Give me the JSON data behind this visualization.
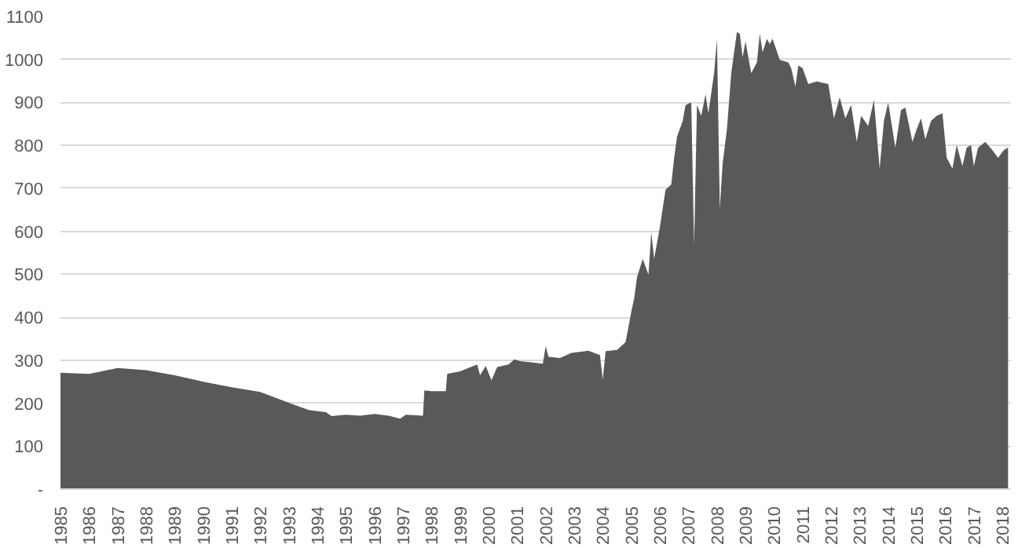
{
  "chart_data": {
    "type": "area",
    "x": [
      1985,
      1986,
      1987,
      1988,
      1989,
      1990,
      1991,
      1992,
      1993,
      1993.7,
      1994.3,
      1994.5,
      1995,
      1995.5,
      1996,
      1996.5,
      1996.9,
      1997.1,
      1997.7,
      1997.75,
      1998,
      1998.5,
      1998.55,
      1999,
      1999.6,
      1999.7,
      1999.9,
      2000.1,
      2000.3,
      2000.7,
      2000.9,
      2001.1,
      2001.5,
      2001.9,
      2002.0,
      2002.1,
      2002.5,
      2002.9,
      2003.5,
      2003.9,
      2004.0,
      2004.1,
      2004.5,
      2004.8,
      2005.0,
      2005.1,
      2005.2,
      2005.4,
      2005.6,
      2005.7,
      2005.8,
      2006.0,
      2006.2,
      2006.4,
      2006.5,
      2006.6,
      2006.8,
      2006.9,
      2007.1,
      2007.2,
      2007.3,
      2007.45,
      2007.6,
      2007.7,
      2007.9,
      2008.0,
      2008.1,
      2008.2,
      2008.35,
      2008.5,
      2008.7,
      2008.8,
      2008.9,
      2009.0,
      2009.2,
      2009.4,
      2009.5,
      2009.6,
      2009.75,
      2009.85,
      2009.95,
      2010.2,
      2010.5,
      2010.6,
      2010.75,
      2010.85,
      2011.0,
      2011.2,
      2011.5,
      2011.9,
      2012.1,
      2012.3,
      2012.5,
      2012.7,
      2012.9,
      2013.05,
      2013.3,
      2013.5,
      2013.7,
      2013.85,
      2014.0,
      2014.25,
      2014.45,
      2014.6,
      2014.85,
      2015.0,
      2015.15,
      2015.3,
      2015.5,
      2015.7,
      2015.9,
      2016.05,
      2016.25,
      2016.4,
      2016.6,
      2016.75,
      2016.9,
      2017.0,
      2017.15,
      2017.4,
      2017.65,
      2017.85,
      2018.05,
      2018.2
    ],
    "values": [
      271,
      268,
      282,
      277,
      265,
      250,
      237,
      226,
      201,
      184,
      179,
      170,
      173,
      171,
      175,
      171,
      164,
      173,
      171,
      230,
      228,
      228,
      268,
      274,
      290,
      265,
      287,
      253,
      284,
      290,
      302,
      298,
      295,
      292,
      333,
      308,
      305,
      317,
      322,
      312,
      255,
      321,
      324,
      342,
      413,
      444,
      493,
      536,
      499,
      598,
      536,
      610,
      697,
      709,
      771,
      820,
      857,
      894,
      900,
      567,
      894,
      869,
      919,
      875,
      968,
      1048,
      653,
      758,
      838,
      968,
      1064,
      1060,
      1005,
      1042,
      968,
      993,
      1060,
      1017,
      1048,
      1036,
      1048,
      999,
      993,
      980,
      937,
      986,
      980,
      943,
      949,
      943,
      863,
      912,
      863,
      894,
      808,
      869,
      845,
      906,
      746,
      857,
      900,
      795,
      882,
      888,
      808,
      838,
      863,
      814,
      857,
      869,
      875,
      771,
      746,
      801,
      752,
      795,
      801,
      752,
      795,
      808,
      789,
      771,
      789,
      795
    ],
    "color": "#595959",
    "xlim": [
      1985,
      2018.3
    ],
    "xticks": [
      1985,
      1986,
      1987,
      1988,
      1989,
      1990,
      1991,
      1992,
      1993,
      1994,
      1995,
      1996,
      1997,
      1998,
      1999,
      2000,
      2001,
      2002,
      2003,
      2004,
      2005,
      2006,
      2007,
      2008,
      2009,
      2010,
      2011,
      2012,
      2013,
      2014,
      2015,
      2016,
      2017,
      2018
    ],
    "ylim": [
      0,
      1100
    ],
    "yticks": [
      {
        "value": 0,
        "label": "-"
      },
      100,
      200,
      300,
      400,
      500,
      600,
      700,
      800,
      900,
      1000,
      1100
    ],
    "grid": "y"
  }
}
